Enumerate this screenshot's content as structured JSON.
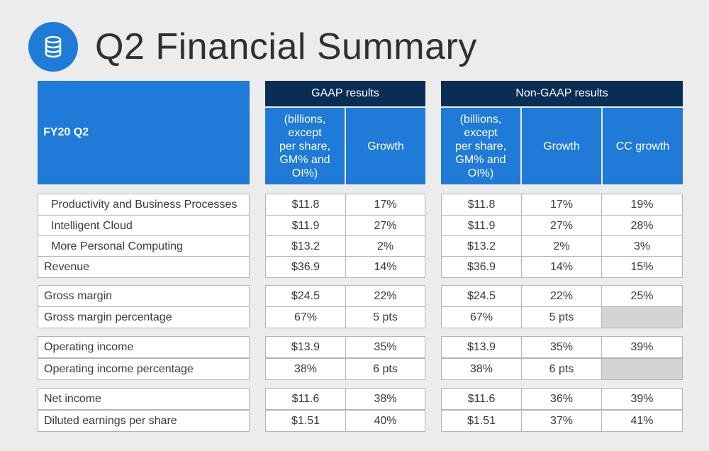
{
  "slide": {
    "title": "Q2 Financial Summary",
    "icon": "database-icon"
  },
  "headers": {
    "period": "FY20 Q2",
    "gaap": "GAAP results",
    "nongaap": "Non-GAAP results",
    "unit": "(billions,\nexcept\nper share,\nGM% and\nOI%)",
    "growth": "Growth",
    "cc_growth": "CC growth"
  },
  "rows": [
    {
      "label": "Productivity and Business Processes",
      "gaap": "$11.8",
      "gaap_growth": "17%",
      "ng": "$11.8",
      "ng_growth": "17%",
      "cc": "19%"
    },
    {
      "label": "Intelligent Cloud",
      "gaap": "$11.9",
      "gaap_growth": "27%",
      "ng": "$11.9",
      "ng_growth": "27%",
      "cc": "28%"
    },
    {
      "label": "More Personal Computing",
      "gaap": "$13.2",
      "gaap_growth": "2%",
      "ng": "$13.2",
      "ng_growth": "2%",
      "cc": "3%"
    },
    {
      "label": "Revenue",
      "gaap": "$36.9",
      "gaap_growth": "14%",
      "ng": "$36.9",
      "ng_growth": "14%",
      "cc": "15%"
    },
    {
      "label": "Gross margin",
      "gaap": "$24.5",
      "gaap_growth": "22%",
      "ng": "$24.5",
      "ng_growth": "22%",
      "cc": "25%"
    },
    {
      "label": "Gross margin percentage",
      "gaap": "67%",
      "gaap_growth": "5 pts",
      "ng": "67%",
      "ng_growth": "5 pts",
      "cc": ""
    },
    {
      "label": "Operating income",
      "gaap": "$13.9",
      "gaap_growth": "35%",
      "ng": "$13.9",
      "ng_growth": "35%",
      "cc": "39%"
    },
    {
      "label": "Operating income percentage",
      "gaap": "38%",
      "gaap_growth": "6 pts",
      "ng": "38%",
      "ng_growth": "6 pts",
      "cc": ""
    },
    {
      "label": "Net income",
      "gaap": "$11.6",
      "gaap_growth": "38%",
      "ng": "$11.6",
      "ng_growth": "36%",
      "cc": "39%"
    },
    {
      "label": "Diluted earnings per share",
      "gaap": "$1.51",
      "gaap_growth": "40%",
      "ng": "$1.51",
      "ng_growth": "37%",
      "cc": "41%"
    }
  ],
  "colors": {
    "header_dark": "#0a2d53",
    "header_blue": "#1f7ad8",
    "background": "#ececec",
    "empty_cell": "#d4d4d4"
  }
}
